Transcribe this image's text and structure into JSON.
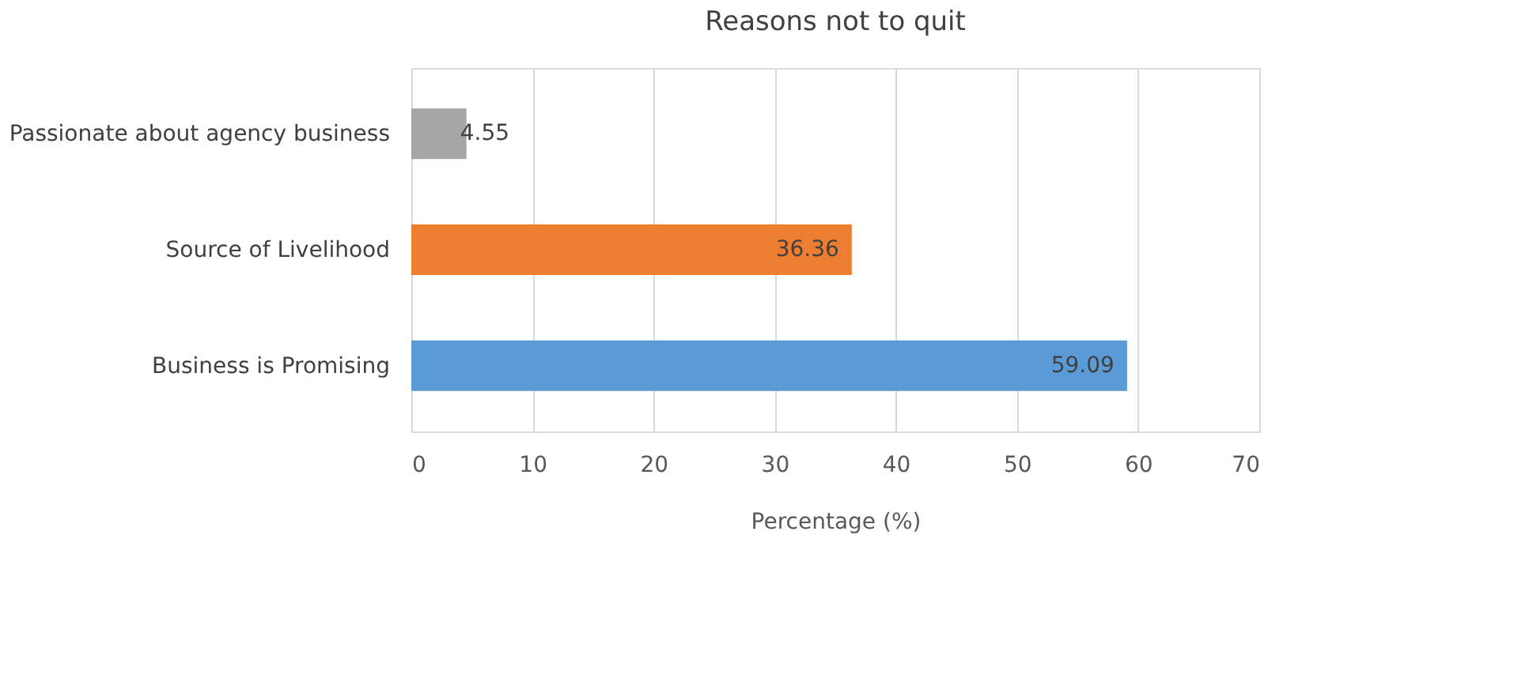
{
  "chart_data": {
    "type": "bar",
    "orientation": "horizontal",
    "title": "Reasons not to quit",
    "xlabel": "Percentage (%)",
    "categories": [
      "Passionate about agency business",
      "Source of Livelihood",
      "Business is  Promising"
    ],
    "values": [
      4.55,
      36.36,
      59.09
    ],
    "colors": [
      "#a5a5a5",
      "#ed7d31",
      "#5b9bd5"
    ],
    "xlim": [
      0,
      70
    ],
    "xticks": [
      0,
      10,
      20,
      30,
      40,
      50,
      60,
      70
    ],
    "grid": "x",
    "data_labels": true
  }
}
